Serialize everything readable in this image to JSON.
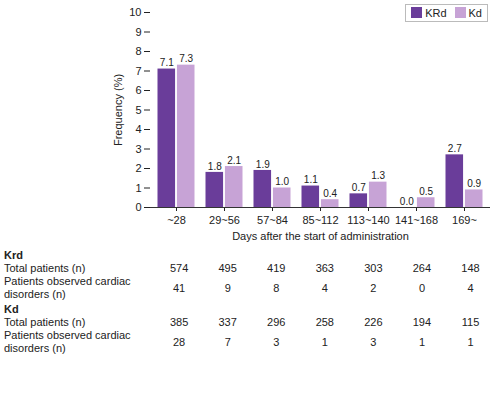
{
  "chart_data": {
    "type": "bar",
    "x_label": "Days after the start of administration",
    "y_label": "Frequency (%)",
    "categories": [
      "~28",
      "29~56",
      "57~84",
      "85~112",
      "113~140",
      "141~168",
      "169~"
    ],
    "series": [
      {
        "name": "KRd",
        "color": "#6a3d9a",
        "values": [
          7.1,
          1.8,
          1.9,
          1.1,
          0.7,
          0,
          2.7
        ],
        "value_labels": [
          "7.1",
          "1.8",
          "1.9",
          "1.1",
          "0.7",
          "0.0",
          "2.7"
        ]
      },
      {
        "name": "Kd",
        "color": "#c7a3d6",
        "values": [
          7.3,
          2.1,
          1,
          0.4,
          1.3,
          0.5,
          0.9
        ],
        "value_labels": [
          "7.3",
          "2.1",
          "1.0",
          "0.4",
          "1.3",
          "0.5",
          "0.9"
        ]
      }
    ],
    "ylim": [
      0,
      10
    ],
    "yticks": [
      0,
      1,
      2,
      3,
      4,
      5,
      6,
      7,
      8,
      9,
      10
    ],
    "data_labels": true,
    "legend": "top-right",
    "grid": false
  },
  "table": {
    "groups": [
      {
        "name": "Krd",
        "rows": [
          {
            "label": "Total patients (n)",
            "values": [
              574,
              495,
              419,
              363,
              303,
              264,
              148
            ]
          },
          {
            "label": "Patients observed cardiac disorders (n)",
            "values": [
              41,
              9,
              8,
              4,
              2,
              0,
              4
            ]
          }
        ]
      },
      {
        "name": "Kd",
        "rows": [
          {
            "label": "Total patients (n)",
            "values": [
              385,
              337,
              296,
              258,
              226,
              194,
              115
            ]
          },
          {
            "label": "Patients observed cardiac disorders (n)",
            "values": [
              28,
              7,
              3,
              1,
              3,
              1,
              1
            ]
          }
        ]
      }
    ]
  }
}
